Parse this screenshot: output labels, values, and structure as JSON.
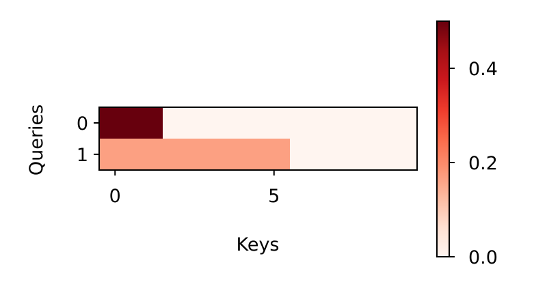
{
  "chart_data": {
    "type": "heatmap",
    "title": "",
    "xlabel": "Keys",
    "ylabel": "Queries",
    "x_ticks": [
      "0",
      "5"
    ],
    "x_tick_values": [
      0,
      5
    ],
    "y_ticks": [
      "0",
      "1"
    ],
    "y_tick_values": [
      0,
      1
    ],
    "xlim": [
      -0.5,
      9.5
    ],
    "ylim": [
      -0.5,
      1.5
    ],
    "grid": false,
    "colormap": "Reds",
    "colorbar": {
      "range": [
        0,
        0.5
      ],
      "ticks": [
        "0.0",
        "0.2",
        "0.4"
      ],
      "tick_values": [
        0.0,
        0.2,
        0.4
      ]
    },
    "rows": [
      [
        0.5,
        0.5,
        0,
        0,
        0,
        0,
        0,
        0,
        0,
        0
      ],
      [
        0.1667,
        0.1667,
        0.1667,
        0.1667,
        0.1667,
        0.1667,
        0,
        0,
        0,
        0
      ]
    ]
  }
}
